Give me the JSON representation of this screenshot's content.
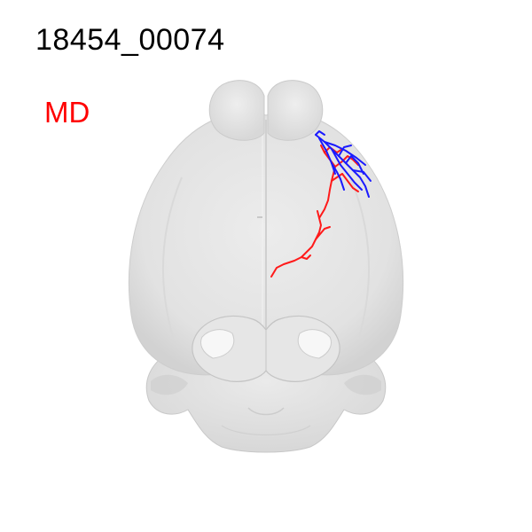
{
  "header": {
    "neuron_id": "18454_00074",
    "region_label": "MD"
  },
  "colors": {
    "background": "#ffffff",
    "brain_fill": "#e2e2e2",
    "brain_shadow": "#cfcfcf",
    "axon": "#ff1a1a",
    "dendrite": "#1a1aff",
    "region_label": "#ff0000"
  },
  "brain_view": "dorsal"
}
